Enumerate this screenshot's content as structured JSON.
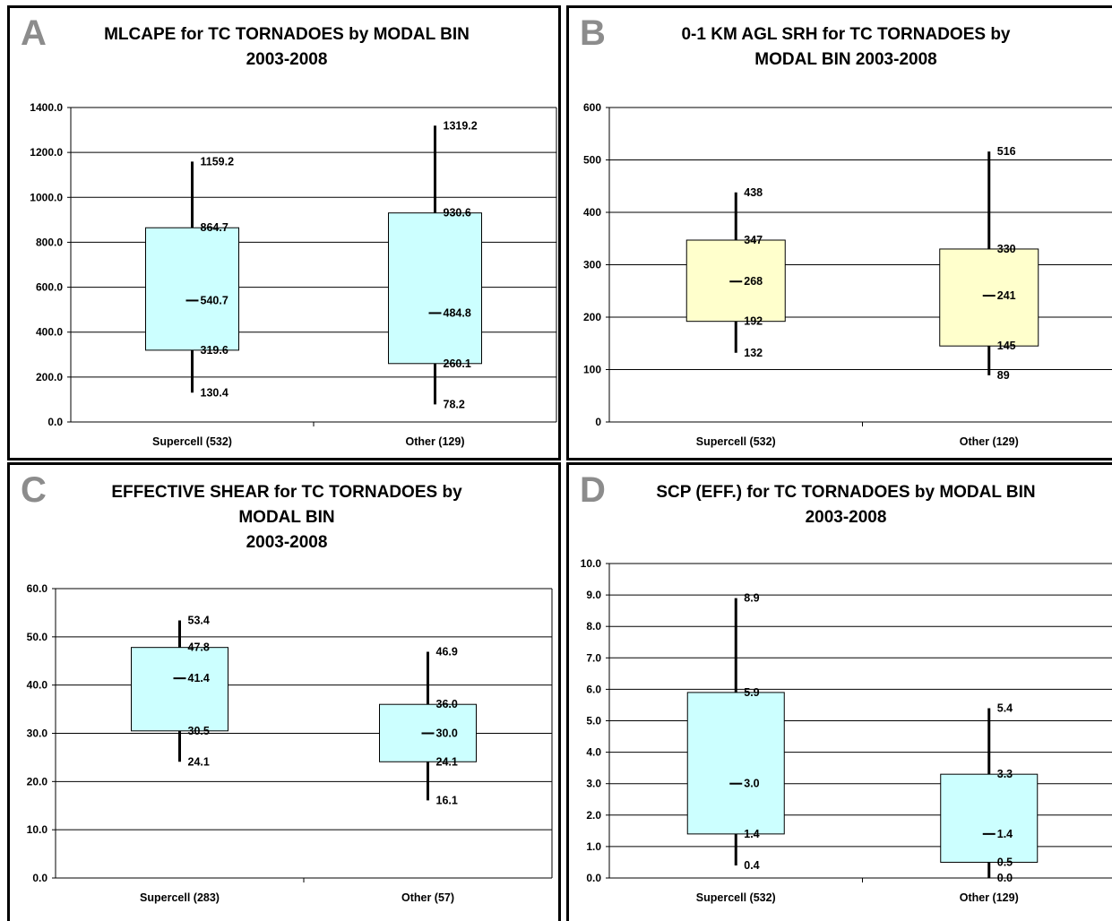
{
  "chart_data": [
    {
      "panel": "A",
      "type": "box",
      "title": "MLCAPE for TC TORNADOES by MODAL BIN\n2003-2008",
      "ylim": [
        0,
        1400
      ],
      "yticks": [
        0,
        200,
        400,
        600,
        800,
        1000,
        1200,
        1400
      ],
      "ytick_labels": [
        "0.0",
        "200.0",
        "400.0",
        "600.0",
        "800.0",
        "1000.0",
        "1200.0",
        "1400.0"
      ],
      "grid": true,
      "box_color": "#ccffff",
      "categories": [
        "Supercell (532)",
        "Other (129)"
      ],
      "boxes": [
        {
          "max": 1159.2,
          "q3": 864.7,
          "median": 540.7,
          "q1": 319.6,
          "min": 130.4,
          "labels": [
            "1159.2",
            "864.7",
            "540.7",
            "319.6",
            "130.4"
          ]
        },
        {
          "max": 1319.2,
          "q3": 930.6,
          "median": 484.8,
          "q1": 260.1,
          "min": 78.2,
          "labels": [
            "1319.2",
            "930.6",
            "484.8",
            "260.1",
            "78.2"
          ]
        }
      ]
    },
    {
      "panel": "B",
      "type": "box",
      "title": "0-1 KM AGL SRH for TC TORNADOES by\nMODAL BIN 2003-2008",
      "ylim": [
        0,
        600
      ],
      "yticks": [
        0,
        100,
        200,
        300,
        400,
        500,
        600
      ],
      "ytick_labels": [
        "0",
        "100",
        "200",
        "300",
        "400",
        "500",
        "600"
      ],
      "grid": true,
      "box_color": "#ffffcc",
      "categories": [
        "Supercell (532)",
        "Other (129)"
      ],
      "boxes": [
        {
          "max": 438,
          "q3": 347,
          "median": 268,
          "q1": 192,
          "min": 132,
          "labels": [
            "438",
            "347",
            "268",
            "192",
            "132"
          ]
        },
        {
          "max": 516,
          "q3": 330,
          "median": 241,
          "q1": 145,
          "min": 89,
          "labels": [
            "516",
            "330",
            "241",
            "145",
            "89"
          ]
        }
      ]
    },
    {
      "panel": "C",
      "type": "box",
      "title": "EFFECTIVE SHEAR for TC TORNADOES by\nMODAL BIN\n2003-2008",
      "ylim": [
        0,
        60
      ],
      "yticks": [
        0,
        10,
        20,
        30,
        40,
        50,
        60
      ],
      "ytick_labels": [
        "0.0",
        "10.0",
        "20.0",
        "30.0",
        "40.0",
        "50.0",
        "60.0"
      ],
      "grid": true,
      "box_color": "#ccffff",
      "categories": [
        "Supercell (283)",
        "Other (57)"
      ],
      "boxes": [
        {
          "max": 53.4,
          "q3": 47.8,
          "median": 41.4,
          "q1": 30.5,
          "min": 24.1,
          "labels": [
            "53.4",
            "47.8",
            "41.4",
            "30.5",
            "24.1"
          ]
        },
        {
          "max": 46.9,
          "q3": 36.0,
          "median": 30.0,
          "q1": 24.1,
          "min": 16.1,
          "labels": [
            "46.9",
            "36.0",
            "30.0",
            "24.1",
            "16.1"
          ]
        }
      ]
    },
    {
      "panel": "D",
      "type": "box",
      "title": "SCP (EFF.) for TC TORNADOES by MODAL BIN\n2003-2008",
      "ylim": [
        0,
        10
      ],
      "yticks": [
        0,
        1,
        2,
        3,
        4,
        5,
        6,
        7,
        8,
        9,
        10
      ],
      "ytick_labels": [
        "0.0",
        "1.0",
        "2.0",
        "3.0",
        "4.0",
        "5.0",
        "6.0",
        "7.0",
        "8.0",
        "9.0",
        "10.0"
      ],
      "grid": true,
      "box_color": "#ccffff",
      "categories": [
        "Supercell (532)",
        "Other (129)"
      ],
      "boxes": [
        {
          "max": 8.9,
          "q3": 5.9,
          "median": 3.0,
          "q1": 1.4,
          "min": 0.4,
          "labels": [
            "8.9",
            "5.9",
            "3.0",
            "1.4",
            "0.4"
          ]
        },
        {
          "max": 5.4,
          "q3": 3.3,
          "median": 1.4,
          "q1": 0.5,
          "min": 0.0,
          "labels": [
            "5.4",
            "3.3",
            "1.4",
            "0.5",
            "0.0"
          ]
        }
      ]
    }
  ]
}
